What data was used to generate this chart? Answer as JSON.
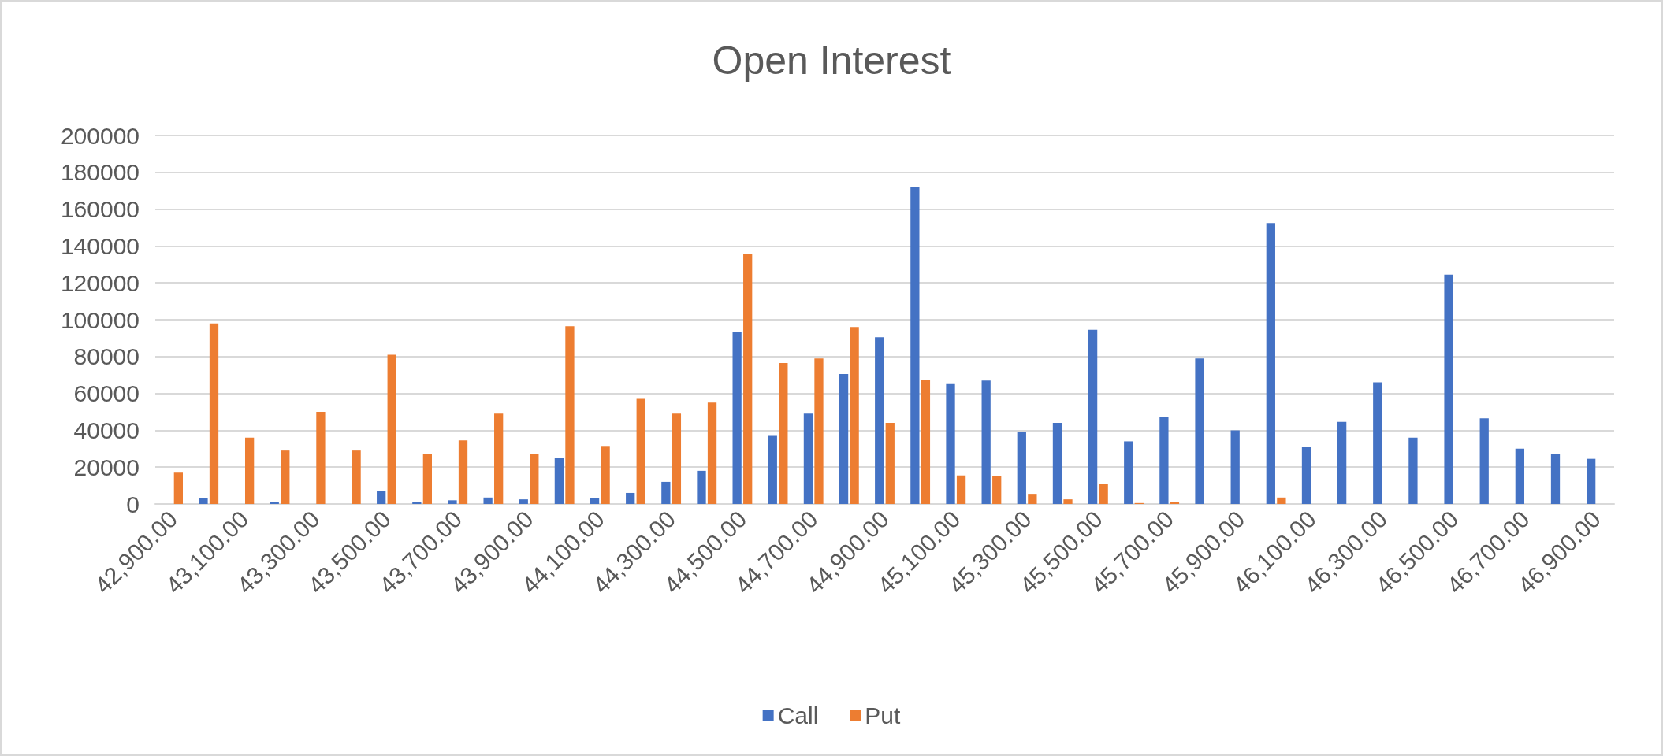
{
  "chart_data": {
    "type": "bar",
    "title": "Open Interest",
    "categories": [
      "42,900.00",
      null,
      "43,100.00",
      null,
      "43,300.00",
      null,
      "43,500.00",
      null,
      "43,700.00",
      null,
      "43,900.00",
      null,
      "44,100.00",
      null,
      "44,300.00",
      null,
      "44,500.00",
      null,
      "44,700.00",
      null,
      "44,900.00",
      null,
      "45,100.00",
      null,
      "45,300.00",
      null,
      "45,500.00",
      null,
      "45,700.00",
      null,
      "45,900.00",
      null,
      "46,100.00",
      null,
      "46,300.00",
      null,
      "46,500.00",
      null,
      "46,700.00",
      null,
      "46,900.00"
    ],
    "series": [
      {
        "name": "Call",
        "color": "#4472c4",
        "values": [
          0,
          3000,
          0,
          1000,
          0,
          0,
          7000,
          1000,
          2000,
          3500,
          2500,
          25000,
          3000,
          6000,
          12000,
          18000,
          93500,
          37000,
          49000,
          70500,
          90500,
          172000,
          65500,
          67000,
          39000,
          44000,
          94500,
          34000,
          47000,
          79000,
          40000,
          152500,
          31000,
          44500,
          66000,
          36000,
          124500,
          46500,
          30000,
          27000,
          24500
        ]
      },
      {
        "name": "Put",
        "color": "#ed7d31",
        "values": [
          17000,
          98000,
          36000,
          29000,
          50000,
          29000,
          81000,
          27000,
          34500,
          49000,
          27000,
          96500,
          31500,
          57000,
          49000,
          55000,
          135500,
          76500,
          79000,
          96000,
          44000,
          67500,
          15500,
          15000,
          5500,
          2500,
          11000,
          500,
          1000,
          0,
          0,
          3500,
          0,
          0,
          0,
          0,
          0,
          0,
          0,
          0,
          0
        ]
      }
    ],
    "ylim": [
      0,
      200000
    ],
    "yticks": [
      0,
      20000,
      40000,
      60000,
      80000,
      100000,
      120000,
      140000,
      160000,
      180000,
      200000
    ],
    "grid": "y",
    "legend": "bottom"
  }
}
